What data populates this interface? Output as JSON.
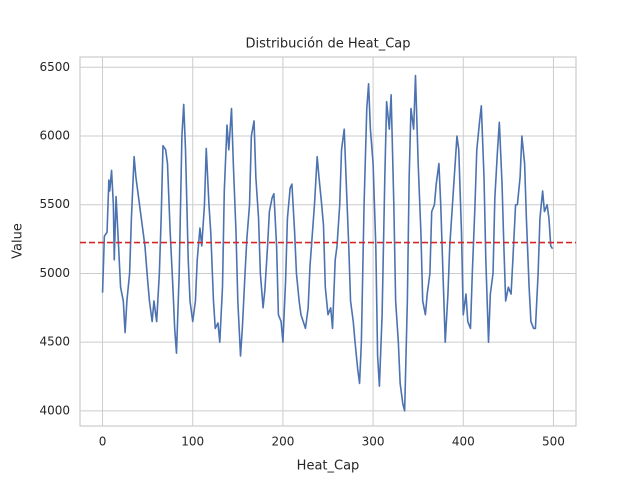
{
  "chart_data": {
    "type": "line",
    "title": "Distribución de Heat_Cap",
    "x_label": "Heat_Cap",
    "y_label": "Value",
    "x": [
      0,
      2,
      5,
      7,
      8,
      10,
      12,
      13,
      15,
      17,
      20,
      23,
      25,
      27,
      30,
      32,
      35,
      37,
      40,
      43,
      45,
      47,
      50,
      52,
      55,
      57,
      60,
      63,
      65,
      67,
      70,
      72,
      75,
      78,
      80,
      82,
      85,
      88,
      90,
      92,
      95,
      97,
      100,
      103,
      105,
      108,
      110,
      113,
      115,
      118,
      120,
      123,
      125,
      128,
      130,
      133,
      135,
      138,
      140,
      143,
      145,
      148,
      150,
      153,
      155,
      158,
      160,
      163,
      165,
      168,
      170,
      173,
      175,
      178,
      180,
      183,
      185,
      188,
      190,
      193,
      195,
      198,
      200,
      203,
      205,
      208,
      210,
      213,
      215,
      218,
      220,
      225,
      228,
      230,
      235,
      238,
      240,
      243,
      245,
      247,
      250,
      253,
      255,
      258,
      260,
      263,
      265,
      268,
      270,
      273,
      275,
      278,
      280,
      283,
      285,
      287,
      290,
      293,
      295,
      297,
      300,
      303,
      305,
      307,
      310,
      313,
      315,
      318,
      320,
      323,
      325,
      328,
      330,
      333,
      335,
      338,
      340,
      342,
      345,
      347,
      350,
      353,
      355,
      358,
      360,
      363,
      365,
      368,
      370,
      373,
      375,
      378,
      380,
      383,
      385,
      388,
      390,
      393,
      395,
      398,
      400,
      403,
      405,
      408,
      410,
      413,
      415,
      418,
      420,
      423,
      425,
      428,
      430,
      433,
      435,
      438,
      440,
      443,
      445,
      447,
      450,
      453,
      455,
      458,
      460,
      463,
      465,
      468,
      470,
      473,
      475,
      478,
      480,
      483,
      485,
      488,
      490,
      493,
      495,
      497,
      499
    ],
    "series": [
      {
        "name": "Heat_Cap",
        "color": "#4c72b0",
        "values": [
          4860,
          5270,
          5300,
          5680,
          5600,
          5750,
          5500,
          5100,
          5560,
          5300,
          4900,
          4800,
          4570,
          4800,
          5000,
          5400,
          5850,
          5700,
          5550,
          5400,
          5300,
          5200,
          4950,
          4800,
          4650,
          4800,
          4650,
          5000,
          5400,
          5930,
          5900,
          5800,
          5300,
          4900,
          4600,
          4420,
          5000,
          6000,
          6230,
          5900,
          5100,
          4800,
          4650,
          4800,
          5100,
          5330,
          5200,
          5500,
          5910,
          5500,
          5300,
          4800,
          4600,
          4640,
          4500,
          4900,
          5600,
          6080,
          5900,
          6200,
          5800,
          5300,
          4800,
          4400,
          4600,
          5000,
          5250,
          5500,
          6000,
          6110,
          5700,
          5400,
          5000,
          4750,
          4880,
          5200,
          5450,
          5550,
          5580,
          5200,
          4700,
          4650,
          4500,
          4950,
          5400,
          5620,
          5650,
          5300,
          5000,
          4800,
          4700,
          4600,
          4750,
          5050,
          5500,
          5850,
          5700,
          5500,
          5350,
          4900,
          4700,
          4750,
          4600,
          5100,
          5200,
          5500,
          5900,
          6050,
          5700,
          5200,
          4800,
          4650,
          4500,
          4300,
          4200,
          4500,
          5500,
          6200,
          6380,
          6050,
          5800,
          5200,
          4400,
          4180,
          4700,
          5700,
          6250,
          6050,
          6300,
          5500,
          4800,
          4500,
          4200,
          4050,
          4000,
          4800,
          5700,
          6200,
          6050,
          6440,
          5800,
          5300,
          4800,
          4700,
          4850,
          5000,
          5450,
          5500,
          5650,
          5800,
          5500,
          4900,
          4500,
          4850,
          5200,
          5500,
          5700,
          6000,
          5900,
          5300,
          4700,
          4850,
          4650,
          4600,
          5000,
          5500,
          5900,
          6100,
          6220,
          5700,
          5100,
          4500,
          4850,
          5000,
          5550,
          5900,
          6100,
          5650,
          5200,
          4800,
          4900,
          4850,
          5100,
          5500,
          5500,
          5700,
          6000,
          5800,
          5400,
          4900,
          4650,
          4600,
          4600,
          5000,
          5400,
          5600,
          5450,
          5500,
          5400,
          5200,
          5180
        ]
      }
    ],
    "hline": {
      "value": 5225,
      "color": "#d62728",
      "style": "dashed"
    },
    "xlim": [
      -25,
      525
    ],
    "ylim": [
      3890,
      6575
    ],
    "xticks": [
      0,
      100,
      200,
      300,
      400,
      500
    ],
    "yticks": [
      4000,
      4500,
      5000,
      5500,
      6000,
      6500
    ],
    "grid": true
  }
}
